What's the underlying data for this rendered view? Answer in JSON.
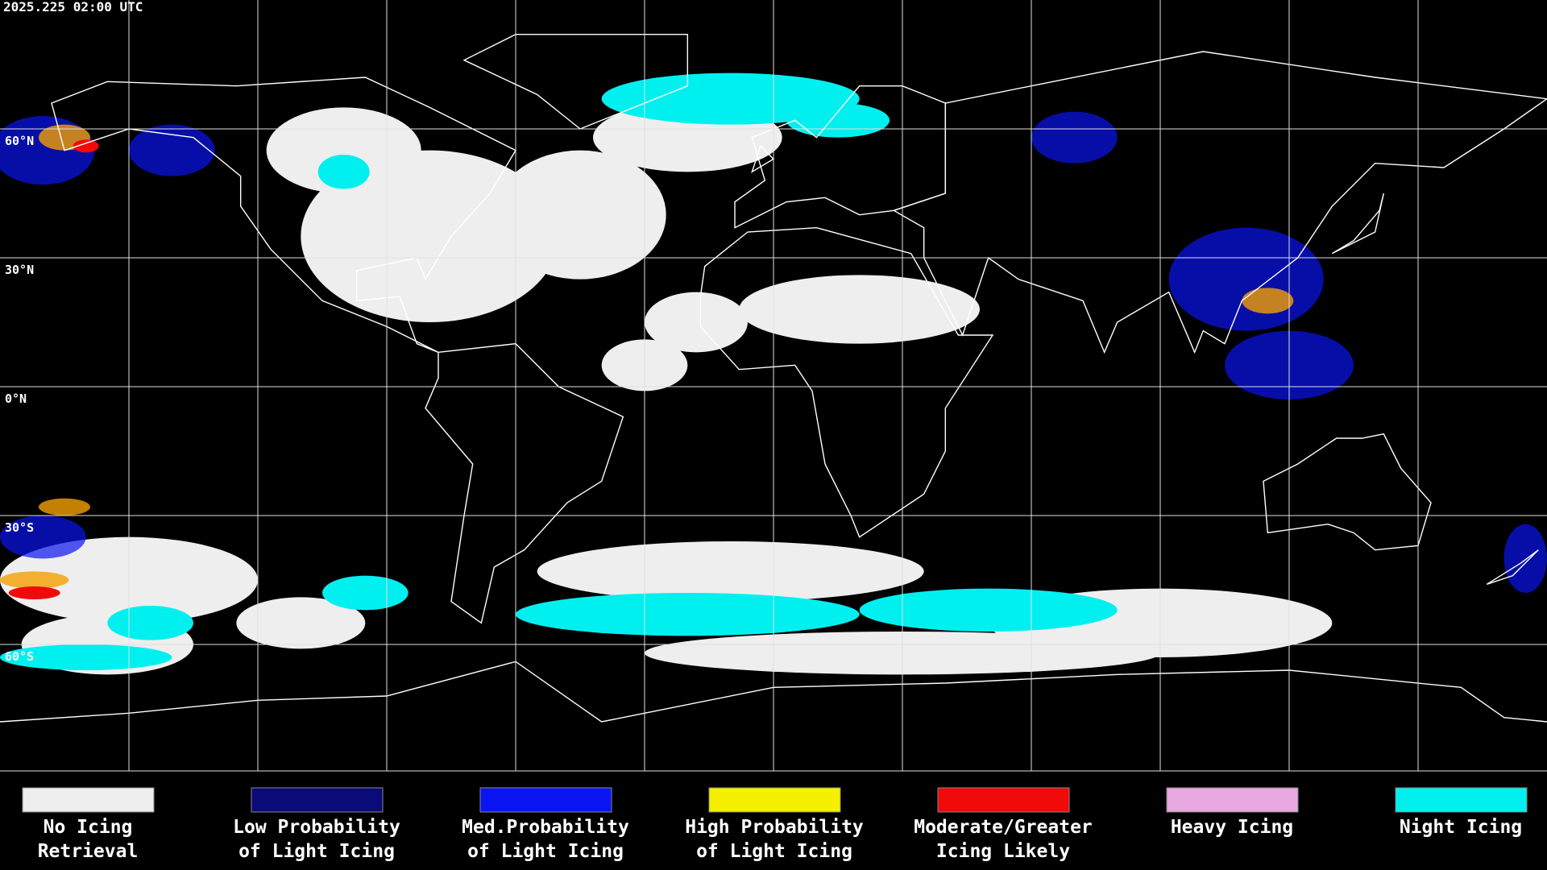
{
  "header": {
    "timestamp": "2025.225 02:00 UTC"
  },
  "grid": {
    "lat_labels": [
      "60°N",
      "30°N",
      "0°N",
      "30°S",
      "60°S"
    ]
  },
  "legend": [
    {
      "color": "#eeeeee",
      "lines": [
        "No Icing",
        "Retrieval"
      ]
    },
    {
      "color": "#0a0a78",
      "lines": [
        "Low Probability",
        "of Light Icing"
      ]
    },
    {
      "color": "#0a14f0",
      "lines": [
        "Med.Probability",
        "of Light Icing"
      ]
    },
    {
      "color": "#f5f000",
      "lines": [
        "High Probability",
        "of Light Icing"
      ]
    },
    {
      "color": "#f00a0a",
      "lines": [
        "Moderate/Greater",
        "Icing Likely"
      ]
    },
    {
      "color": "#e8a8e0",
      "lines": [
        "Heavy Icing"
      ]
    },
    {
      "color": "#00f0f0",
      "lines": [
        "Night Icing"
      ]
    }
  ]
}
